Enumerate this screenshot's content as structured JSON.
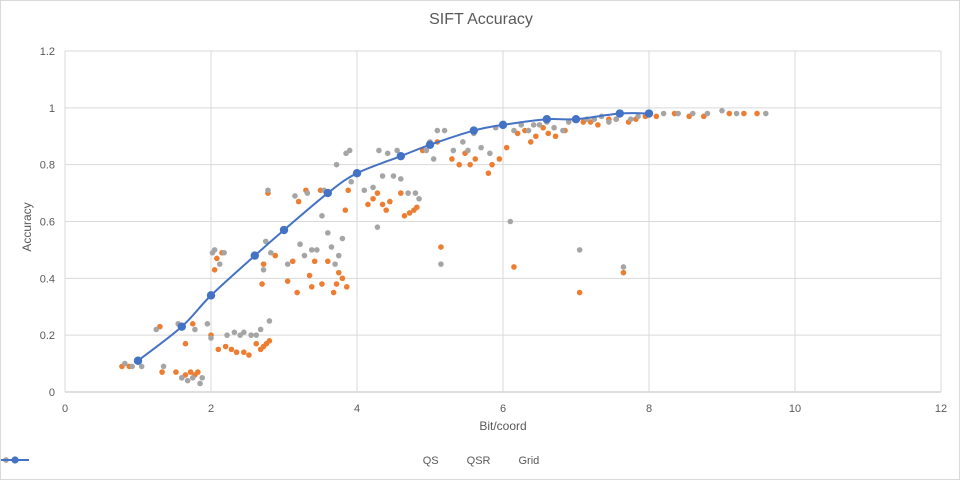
{
  "chart_data": {
    "type": "scatter",
    "title": "SIFT Accuracy",
    "xlabel": "Bit/coord",
    "ylabel": "Accuracy",
    "xlim": [
      0,
      12
    ],
    "ylim": [
      0,
      1.2
    ],
    "xticks": [
      "0",
      "2",
      "4",
      "6",
      "8",
      "10",
      "12"
    ],
    "yticks": [
      "0",
      "0.2",
      "0.4",
      "0.6",
      "0.8",
      "1",
      "1.2"
    ],
    "grid": true,
    "legend_position": "bottom",
    "series": [
      {
        "name": "QS",
        "color": "#ED7D31",
        "style": "markers",
        "points": [
          [
            0.78,
            0.09
          ],
          [
            0.88,
            0.09
          ],
          [
            1.3,
            0.23
          ],
          [
            1.33,
            0.07
          ],
          [
            1.52,
            0.07
          ],
          [
            1.6,
            0.05
          ],
          [
            1.65,
            0.06
          ],
          [
            1.72,
            0.07
          ],
          [
            1.78,
            0.06
          ],
          [
            1.82,
            0.07
          ],
          [
            1.75,
            0.24
          ],
          [
            1.65,
            0.17
          ],
          [
            2.0,
            0.2
          ],
          [
            2.05,
            0.43
          ],
          [
            2.08,
            0.47
          ],
          [
            2.15,
            0.49
          ],
          [
            2.1,
            0.15
          ],
          [
            2.2,
            0.16
          ],
          [
            2.28,
            0.15
          ],
          [
            2.35,
            0.14
          ],
          [
            2.45,
            0.14
          ],
          [
            2.52,
            0.13
          ],
          [
            2.62,
            0.17
          ],
          [
            2.68,
            0.15
          ],
          [
            2.72,
            0.16
          ],
          [
            2.76,
            0.17
          ],
          [
            2.8,
            0.18
          ],
          [
            2.7,
            0.38
          ],
          [
            2.72,
            0.45
          ],
          [
            2.78,
            0.7
          ],
          [
            2.88,
            0.48
          ],
          [
            3.05,
            0.39
          ],
          [
            3.12,
            0.46
          ],
          [
            3.18,
            0.35
          ],
          [
            3.2,
            0.67
          ],
          [
            3.3,
            0.71
          ],
          [
            3.35,
            0.41
          ],
          [
            3.38,
            0.37
          ],
          [
            3.42,
            0.46
          ],
          [
            3.5,
            0.71
          ],
          [
            3.52,
            0.38
          ],
          [
            3.6,
            0.46
          ],
          [
            3.68,
            0.35
          ],
          [
            3.72,
            0.38
          ],
          [
            3.75,
            0.42
          ],
          [
            3.8,
            0.4
          ],
          [
            3.84,
            0.64
          ],
          [
            3.86,
            0.37
          ],
          [
            3.88,
            0.71
          ],
          [
            4.15,
            0.66
          ],
          [
            4.22,
            0.68
          ],
          [
            4.28,
            0.7
          ],
          [
            4.35,
            0.66
          ],
          [
            4.4,
            0.64
          ],
          [
            4.45,
            0.67
          ],
          [
            4.6,
            0.7
          ],
          [
            4.65,
            0.62
          ],
          [
            4.72,
            0.63
          ],
          [
            4.78,
            0.64
          ],
          [
            4.82,
            0.65
          ],
          [
            4.62,
            0.83
          ],
          [
            4.9,
            0.85
          ],
          [
            5.1,
            0.88
          ],
          [
            5.15,
            0.51
          ],
          [
            5.3,
            0.82
          ],
          [
            5.4,
            0.8
          ],
          [
            5.48,
            0.84
          ],
          [
            5.55,
            0.8
          ],
          [
            5.62,
            0.82
          ],
          [
            5.8,
            0.77
          ],
          [
            5.85,
            0.8
          ],
          [
            5.95,
            0.82
          ],
          [
            6.05,
            0.86
          ],
          [
            6.15,
            0.44
          ],
          [
            6.2,
            0.91
          ],
          [
            6.3,
            0.92
          ],
          [
            6.38,
            0.88
          ],
          [
            6.45,
            0.9
          ],
          [
            6.55,
            0.93
          ],
          [
            6.62,
            0.91
          ],
          [
            6.72,
            0.9
          ],
          [
            6.85,
            0.92
          ],
          [
            7.05,
            0.35
          ],
          [
            7.1,
            0.95
          ],
          [
            7.2,
            0.95
          ],
          [
            7.3,
            0.94
          ],
          [
            7.45,
            0.96
          ],
          [
            7.55,
            0.96
          ],
          [
            7.65,
            0.42
          ],
          [
            7.72,
            0.95
          ],
          [
            7.82,
            0.96
          ],
          [
            7.95,
            0.97
          ],
          [
            8.1,
            0.97
          ],
          [
            8.35,
            0.98
          ],
          [
            8.55,
            0.97
          ],
          [
            8.75,
            0.97
          ],
          [
            9.1,
            0.98
          ],
          [
            9.3,
            0.98
          ],
          [
            9.48,
            0.98
          ]
        ]
      },
      {
        "name": "QSR",
        "color": "#A5A5A5",
        "style": "markers",
        "points": [
          [
            0.82,
            0.1
          ],
          [
            0.92,
            0.09
          ],
          [
            1.05,
            0.09
          ],
          [
            1.25,
            0.22
          ],
          [
            1.35,
            0.09
          ],
          [
            1.55,
            0.24
          ],
          [
            1.6,
            0.05
          ],
          [
            1.68,
            0.04
          ],
          [
            1.75,
            0.05
          ],
          [
            1.85,
            0.03
          ],
          [
            1.88,
            0.05
          ],
          [
            1.78,
            0.22
          ],
          [
            1.95,
            0.24
          ],
          [
            2.0,
            0.19
          ],
          [
            2.02,
            0.49
          ],
          [
            2.05,
            0.5
          ],
          [
            2.12,
            0.45
          ],
          [
            2.18,
            0.49
          ],
          [
            2.22,
            0.2
          ],
          [
            2.32,
            0.21
          ],
          [
            2.4,
            0.2
          ],
          [
            2.45,
            0.21
          ],
          [
            2.55,
            0.2
          ],
          [
            2.62,
            0.2
          ],
          [
            2.68,
            0.22
          ],
          [
            2.72,
            0.43
          ],
          [
            2.75,
            0.53
          ],
          [
            2.78,
            0.71
          ],
          [
            2.8,
            0.25
          ],
          [
            2.82,
            0.49
          ],
          [
            3.05,
            0.45
          ],
          [
            3.15,
            0.69
          ],
          [
            3.22,
            0.52
          ],
          [
            3.28,
            0.48
          ],
          [
            3.32,
            0.7
          ],
          [
            3.38,
            0.5
          ],
          [
            3.45,
            0.5
          ],
          [
            3.52,
            0.62
          ],
          [
            3.55,
            0.71
          ],
          [
            3.6,
            0.56
          ],
          [
            3.65,
            0.51
          ],
          [
            3.7,
            0.45
          ],
          [
            3.75,
            0.48
          ],
          [
            3.8,
            0.54
          ],
          [
            3.72,
            0.8
          ],
          [
            3.85,
            0.84
          ],
          [
            3.9,
            0.85
          ],
          [
            3.92,
            0.74
          ],
          [
            4.1,
            0.71
          ],
          [
            4.22,
            0.72
          ],
          [
            4.28,
            0.58
          ],
          [
            4.3,
            0.85
          ],
          [
            4.35,
            0.76
          ],
          [
            4.42,
            0.84
          ],
          [
            4.5,
            0.76
          ],
          [
            4.55,
            0.85
          ],
          [
            4.6,
            0.75
          ],
          [
            4.7,
            0.7
          ],
          [
            4.8,
            0.7
          ],
          [
            4.85,
            0.68
          ],
          [
            4.95,
            0.85
          ],
          [
            5.0,
            0.88
          ],
          [
            5.05,
            0.82
          ],
          [
            5.1,
            0.92
          ],
          [
            5.15,
            0.45
          ],
          [
            5.2,
            0.92
          ],
          [
            5.32,
            0.85
          ],
          [
            5.45,
            0.88
          ],
          [
            5.52,
            0.85
          ],
          [
            5.6,
            0.91
          ],
          [
            5.7,
            0.86
          ],
          [
            5.82,
            0.84
          ],
          [
            5.9,
            0.93
          ],
          [
            6.1,
            0.6
          ],
          [
            6.15,
            0.92
          ],
          [
            6.25,
            0.94
          ],
          [
            6.35,
            0.92
          ],
          [
            6.42,
            0.94
          ],
          [
            6.5,
            0.94
          ],
          [
            6.6,
            0.95
          ],
          [
            6.7,
            0.93
          ],
          [
            6.82,
            0.92
          ],
          [
            6.9,
            0.95
          ],
          [
            7.05,
            0.5
          ],
          [
            7.15,
            0.96
          ],
          [
            7.25,
            0.96
          ],
          [
            7.35,
            0.97
          ],
          [
            7.45,
            0.95
          ],
          [
            7.55,
            0.96
          ],
          [
            7.65,
            0.44
          ],
          [
            7.75,
            0.96
          ],
          [
            7.85,
            0.97
          ],
          [
            8.0,
            0.98
          ],
          [
            8.2,
            0.98
          ],
          [
            8.4,
            0.98
          ],
          [
            8.6,
            0.98
          ],
          [
            8.8,
            0.98
          ],
          [
            9.0,
            0.99
          ],
          [
            9.2,
            0.98
          ],
          [
            9.6,
            0.98
          ]
        ]
      },
      {
        "name": "Grid",
        "color": "#4472C4",
        "style": "line-markers",
        "points": [
          [
            1.0,
            0.11
          ],
          [
            1.6,
            0.23
          ],
          [
            2.0,
            0.34
          ],
          [
            2.6,
            0.48
          ],
          [
            3.0,
            0.57
          ],
          [
            3.6,
            0.7
          ],
          [
            4.0,
            0.77
          ],
          [
            4.6,
            0.83
          ],
          [
            5.0,
            0.87
          ],
          [
            5.6,
            0.92
          ],
          [
            6.0,
            0.94
          ],
          [
            6.6,
            0.96
          ],
          [
            7.0,
            0.96
          ],
          [
            7.6,
            0.98
          ],
          [
            8.0,
            0.98
          ]
        ]
      }
    ]
  }
}
